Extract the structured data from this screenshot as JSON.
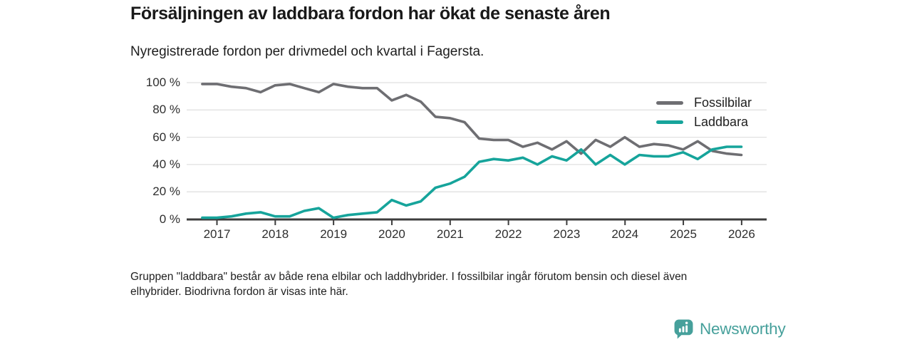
{
  "header": {
    "title": "Försäljningen av laddbara fordon har ökat de senaste åren",
    "subtitle": "Nyregistrerade fordon per drivmedel och kvartal i Fagersta."
  },
  "chart_data": {
    "type": "line",
    "title": "Försäljningen av laddbara fordon har ökat de senaste åren",
    "subtitle": "Nyregistrerade fordon per drivmedel och kvartal i Fagersta.",
    "unit": "%",
    "ylim": [
      0,
      100
    ],
    "grid": "horizontal",
    "legend_position": "top-right",
    "y_ticks": [
      0,
      20,
      40,
      60,
      80,
      100
    ],
    "y_tick_labels": [
      "0 %",
      "20 %",
      "40 %",
      "60 %",
      "80 %",
      "100 %"
    ],
    "x_tick_labels": [
      "2017",
      "2018",
      "2019",
      "2020",
      "2021",
      "2022",
      "2023",
      "2024",
      "2025",
      "2026"
    ],
    "x": [
      "2016K4",
      "2017K1",
      "2017K2",
      "2017K3",
      "2017K4",
      "2018K1",
      "2018K2",
      "2018K3",
      "2018K4",
      "2019K1",
      "2019K2",
      "2019K3",
      "2019K4",
      "2020K1",
      "2020K2",
      "2020K3",
      "2020K4",
      "2021K1",
      "2021K2",
      "2021K3",
      "2021K4",
      "2022K1",
      "2022K2",
      "2022K3",
      "2022K4",
      "2023K1",
      "2023K2",
      "2023K3",
      "2023K4",
      "2024K1",
      "2024K2",
      "2024K3",
      "2024K4",
      "2025K1",
      "2025K2",
      "2025K3",
      "2025K4",
      "2026K1"
    ],
    "series": [
      {
        "name": "Fossilbilar",
        "color": "#6e6e72",
        "values": [
          99,
          99,
          97,
          96,
          93,
          98,
          99,
          96,
          93,
          99,
          97,
          96,
          96,
          87,
          91,
          86,
          75,
          74,
          71,
          59,
          58,
          58,
          53,
          56,
          51,
          57,
          48,
          58,
          53,
          60,
          53,
          55,
          54,
          51,
          57,
          50,
          48,
          47
        ]
      },
      {
        "name": "Laddbara",
        "color": "#16a49b",
        "values": [
          1,
          1,
          2,
          4,
          5,
          2,
          2,
          6,
          8,
          1,
          3,
          4,
          5,
          14,
          10,
          13,
          23,
          26,
          31,
          42,
          44,
          43,
          45,
          40,
          46,
          43,
          51,
          40,
          47,
          40,
          47,
          46,
          46,
          49,
          44,
          51,
          53,
          53
        ]
      }
    ]
  },
  "legend": {
    "items": [
      {
        "label": "Fossilbilar",
        "color": "#6e6e72"
      },
      {
        "label": "Laddbara",
        "color": "#16a49b"
      }
    ]
  },
  "footer": {
    "note_line1": "Gruppen \"laddbara\" består av både rena elbilar och laddhybrider. I fossilbilar ingår förutom bensin och diesel även",
    "note_line2": "elhybrider. Biodrivna fordon är visas inte här."
  },
  "branding": {
    "logo_text": "Newsworthy",
    "logo_color": "#46a09b"
  }
}
